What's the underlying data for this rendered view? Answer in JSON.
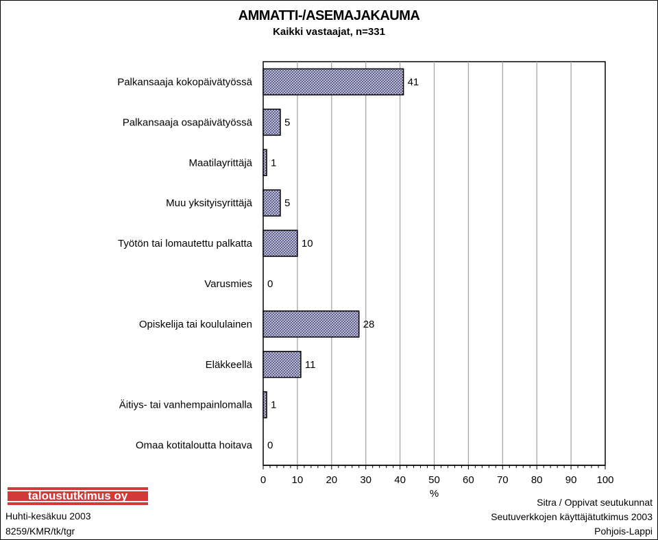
{
  "header": {
    "title": "AMMATTI-/ASEMAJAKAUMA",
    "subtitle": "Kaikki vastaajat, n=331"
  },
  "chart_data": {
    "type": "bar",
    "orientation": "horizontal",
    "categories": [
      "Palkansaaja kokopäivätyössä",
      "Palkansaaja osapäivätyössä",
      "Maatilayrittäjä",
      "Muu yksityisyrittäjä",
      "Työtön tai lomautettu palkatta",
      "Varusmies",
      "Opiskelija tai koululainen",
      "Eläkkeellä",
      "Äitiys- tai vanhempainlomalla",
      "Omaa kotitaloutta hoitava"
    ],
    "values": [
      41,
      5,
      1,
      5,
      10,
      0,
      28,
      11,
      1,
      0
    ],
    "xlabel": "%",
    "xlim": [
      0,
      100
    ],
    "xticks": [
      0,
      10,
      20,
      30,
      40,
      50,
      60,
      70,
      80,
      90,
      100
    ],
    "grid": "vertical",
    "bar_fill": "#8a8ab8"
  },
  "footer": {
    "logo_text": "taloustutkimus oy",
    "left_line1": "Huhti-kesäkuu 2003",
    "left_line2": "8259/KMR/tk/tgr",
    "right_line1": "Sitra / Oppivat seutukunnat",
    "right_line2": "Seutuverkkojen käyttäjätutkimus 2003",
    "right_line3": "Pohjois-Lappi"
  }
}
